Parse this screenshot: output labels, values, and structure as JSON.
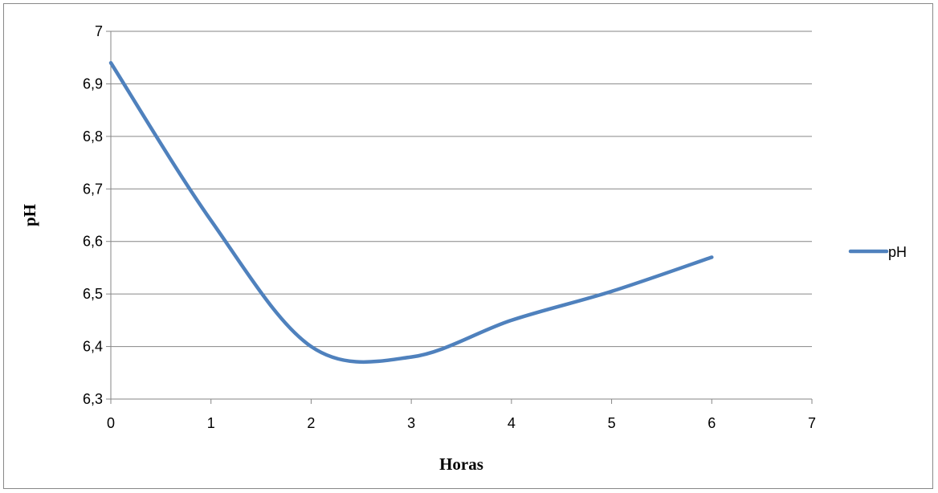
{
  "chart_data": {
    "type": "line",
    "title": "",
    "xlabel": "Horas",
    "ylabel": "pH",
    "xlim": [
      0,
      7
    ],
    "ylim": [
      6.3,
      7.0
    ],
    "x_ticks": [
      "0",
      "1",
      "2",
      "3",
      "4",
      "5",
      "6",
      "7"
    ],
    "y_ticks": [
      "6,3",
      "6,4",
      "6,5",
      "6,6",
      "6,7",
      "6,8",
      "6,9",
      "7"
    ],
    "grid": "horizontal",
    "legend_position": "right",
    "series": [
      {
        "name": "pH",
        "color": "#4F81BD",
        "smooth": true,
        "x": [
          0,
          1,
          2,
          3,
          4,
          5,
          6
        ],
        "y": [
          6.94,
          6.64,
          6.4,
          6.38,
          6.45,
          6.505,
          6.57
        ]
      }
    ]
  }
}
